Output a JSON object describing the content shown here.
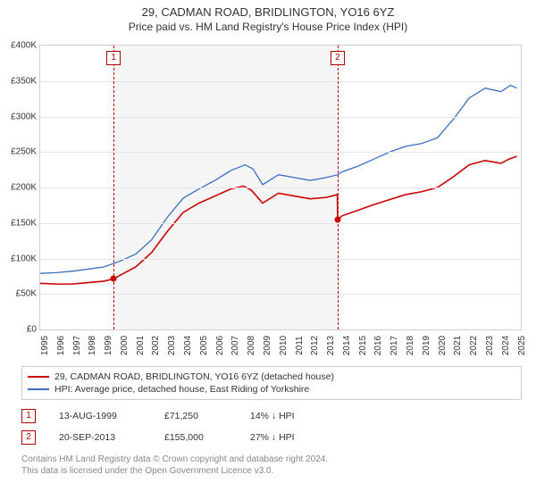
{
  "title": "29, CADMAN ROAD, BRIDLINGTON, YO16 6YZ",
  "subtitle": "Price paid vs. HM Land Registry's House Price Index (HPI)",
  "chart": {
    "type": "line",
    "background_color": "#ffffff",
    "grid_color": "#e6e6e6",
    "border_color": "#cfcfcf",
    "shaded_bg_color": "#f4f4f4",
    "y": {
      "min": 0,
      "max": 400000,
      "ticks": [
        0,
        50000,
        100000,
        150000,
        200000,
        250000,
        300000,
        350000,
        400000
      ],
      "labels": [
        "£0",
        "£50K",
        "£100K",
        "£150K",
        "£200K",
        "£250K",
        "£300K",
        "£350K",
        "£400K"
      ],
      "fontsize": 10
    },
    "x": {
      "min": 1995,
      "max": 2025.25,
      "ticks": [
        1995,
        1996,
        1997,
        1998,
        1999,
        2000,
        2001,
        2002,
        2003,
        2004,
        2005,
        2006,
        2007,
        2008,
        2009,
        2010,
        2011,
        2012,
        2013,
        2014,
        2015,
        2016,
        2017,
        2018,
        2019,
        2020,
        2021,
        2022,
        2023,
        2024,
        2025
      ],
      "fontsize": 10,
      "rotation": -90
    },
    "shaded_region": {
      "x_start": 1999.62,
      "x_end": 2013.72
    },
    "series": [
      {
        "name": "red",
        "label": "29, CADMAN ROAD, BRIDLINGTON, YO16 6YZ (detached house)",
        "color": "#cc0000",
        "line_width": 1.6,
        "points": [
          [
            1995.0,
            65000
          ],
          [
            1996.0,
            64000
          ],
          [
            1997.0,
            64000
          ],
          [
            1998.0,
            66000
          ],
          [
            1999.0,
            68000
          ],
          [
            1999.62,
            71250
          ],
          [
            2000.0,
            76000
          ],
          [
            2001.0,
            88000
          ],
          [
            2002.0,
            108000
          ],
          [
            2003.0,
            138000
          ],
          [
            2004.0,
            165000
          ],
          [
            2005.0,
            178000
          ],
          [
            2006.0,
            188000
          ],
          [
            2007.0,
            198000
          ],
          [
            2007.8,
            202000
          ],
          [
            2008.3,
            196000
          ],
          [
            2009.0,
            178000
          ],
          [
            2010.0,
            192000
          ],
          [
            2011.0,
            188000
          ],
          [
            2012.0,
            184000
          ],
          [
            2013.0,
            186000
          ],
          [
            2013.7,
            190000
          ],
          [
            2013.72,
            155000
          ],
          [
            2014.0,
            160000
          ],
          [
            2015.0,
            168000
          ],
          [
            2016.0,
            176000
          ],
          [
            2017.0,
            183000
          ],
          [
            2018.0,
            190000
          ],
          [
            2019.0,
            194000
          ],
          [
            2020.0,
            200000
          ],
          [
            2021.0,
            215000
          ],
          [
            2022.0,
            232000
          ],
          [
            2023.0,
            238000
          ],
          [
            2024.0,
            234000
          ],
          [
            2024.5,
            240000
          ],
          [
            2025.0,
            244000
          ]
        ]
      },
      {
        "name": "blue",
        "label": "HPI: Average price, detached house, East Riding of Yorkshire",
        "color": "#3a6fc2",
        "line_width": 1.3,
        "points": [
          [
            1995.0,
            79000
          ],
          [
            1996.0,
            80000
          ],
          [
            1997.0,
            82000
          ],
          [
            1998.0,
            85000
          ],
          [
            1999.0,
            88000
          ],
          [
            2000.0,
            96000
          ],
          [
            2001.0,
            106000
          ],
          [
            2002.0,
            126000
          ],
          [
            2003.0,
            158000
          ],
          [
            2004.0,
            185000
          ],
          [
            2005.0,
            198000
          ],
          [
            2006.0,
            210000
          ],
          [
            2007.0,
            224000
          ],
          [
            2007.9,
            232000
          ],
          [
            2008.4,
            226000
          ],
          [
            2009.0,
            204000
          ],
          [
            2010.0,
            218000
          ],
          [
            2011.0,
            214000
          ],
          [
            2012.0,
            210000
          ],
          [
            2013.0,
            214000
          ],
          [
            2013.72,
            218000
          ],
          [
            2014.0,
            222000
          ],
          [
            2015.0,
            230000
          ],
          [
            2016.0,
            240000
          ],
          [
            2017.0,
            250000
          ],
          [
            2018.0,
            258000
          ],
          [
            2019.0,
            262000
          ],
          [
            2020.0,
            270000
          ],
          [
            2021.0,
            296000
          ],
          [
            2022.0,
            326000
          ],
          [
            2023.0,
            340000
          ],
          [
            2024.0,
            335000
          ],
          [
            2024.6,
            344000
          ],
          [
            2025.0,
            340000
          ]
        ]
      }
    ],
    "markers": [
      {
        "n": "1",
        "x": 1999.62,
        "y": 71250,
        "dot_color": "#cc0000"
      },
      {
        "n": "2",
        "x": 2013.72,
        "y": 155000,
        "dot_color": "#cc0000"
      }
    ],
    "marker_line_color": "#b30000"
  },
  "legend": {
    "border_color": "#cccccc",
    "fontsize": 10.5,
    "items": [
      {
        "color": "#cc0000",
        "label": "29, CADMAN ROAD, BRIDLINGTON, YO16 6YZ (detached house)"
      },
      {
        "color": "#3a6fc2",
        "label": "HPI: Average price, detached house, East Riding of Yorkshire"
      }
    ]
  },
  "sales": [
    {
      "n": "1",
      "date": "13-AUG-1999",
      "price": "£71,250",
      "pct": "14%",
      "arrow": "↓",
      "vs": "HPI"
    },
    {
      "n": "2",
      "date": "20-SEP-2013",
      "price": "£155,000",
      "pct": "27%",
      "arrow": "↓",
      "vs": "HPI"
    }
  ],
  "credits": {
    "line1": "Contains HM Land Registry data © Crown copyright and database right 2024.",
    "line2": "This data is licensed under the Open Government Licence v3.0."
  }
}
